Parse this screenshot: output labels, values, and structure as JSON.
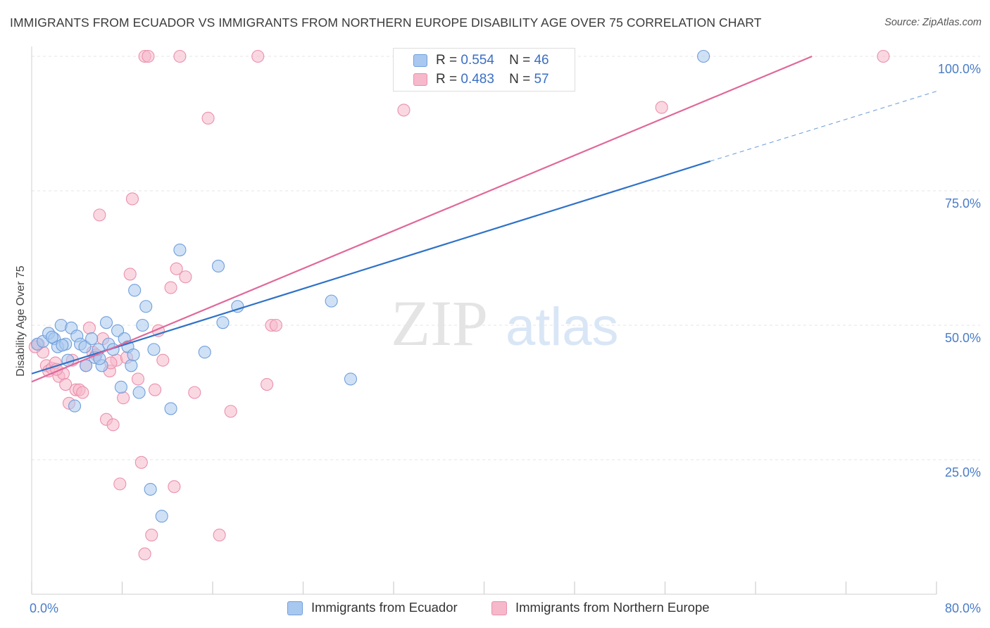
{
  "title": "IMMIGRANTS FROM ECUADOR VS IMMIGRANTS FROM NORTHERN EUROPE DISABILITY AGE OVER 75 CORRELATION CHART",
  "source": "Source: ZipAtlas.com",
  "watermark": {
    "zip": "ZIP",
    "atlas": "atlas"
  },
  "legend": {
    "r_label": "R =",
    "n_label": "N =",
    "series": [
      {
        "r": "0.554",
        "n": "46"
      },
      {
        "r": "0.483",
        "n": "57"
      }
    ]
  },
  "colors": {
    "ecuador_fill": "#a9c8ef",
    "ecuador_stroke": "#6f9fdc",
    "ecuador_line": "#2f72c8",
    "northern_fill": "#f6b8cb",
    "northern_stroke": "#eb90ad",
    "northern_line": "#e0689a",
    "tick_label": "#4a7cc7",
    "grid": "#e6e6e6"
  },
  "chart_data": {
    "type": "scatter",
    "title": "IMMIGRANTS FROM ECUADOR VS IMMIGRANTS FROM NORTHERN EUROPE DISABILITY AGE OVER 75 CORRELATION CHART",
    "xlabel": "",
    "ylabel": "Disability Age Over 75",
    "xlim": [
      0,
      80
    ],
    "ylim": [
      0,
      100
    ],
    "x_tick_labels": [
      "0.0%",
      "80.0%"
    ],
    "y_ticks": [
      25,
      50,
      75,
      100
    ],
    "y_tick_labels": [
      "25.0%",
      "50.0%",
      "75.0%",
      "100.0%"
    ],
    "grid": true,
    "legend_position": "top-center",
    "series": [
      {
        "name": "Immigrants from Ecuador",
        "points": [
          [
            0.5,
            46.5
          ],
          [
            1.0,
            47.0
          ],
          [
            1.5,
            48.5
          ],
          [
            2.0,
            47.5
          ],
          [
            2.3,
            46.0
          ],
          [
            2.6,
            50.0
          ],
          [
            3.0,
            46.5
          ],
          [
            3.2,
            43.5
          ],
          [
            3.5,
            49.5
          ],
          [
            3.8,
            35.0
          ],
          [
            4.0,
            48.0
          ],
          [
            4.3,
            46.5
          ],
          [
            4.7,
            46.0
          ],
          [
            4.8,
            42.5
          ],
          [
            5.3,
            47.5
          ],
          [
            5.6,
            44.0
          ],
          [
            5.9,
            45.5
          ],
          [
            6.2,
            42.5
          ],
          [
            6.6,
            50.5
          ],
          [
            6.8,
            46.5
          ],
          [
            7.2,
            45.5
          ],
          [
            7.6,
            49.0
          ],
          [
            7.9,
            38.5
          ],
          [
            8.2,
            47.5
          ],
          [
            8.5,
            46.0
          ],
          [
            8.8,
            42.5
          ],
          [
            9.1,
            56.5
          ],
          [
            9.5,
            37.5
          ],
          [
            9.8,
            50.0
          ],
          [
            10.1,
            53.5
          ],
          [
            10.5,
            19.5
          ],
          [
            10.8,
            45.5
          ],
          [
            11.5,
            14.5
          ],
          [
            12.3,
            34.5
          ],
          [
            13.1,
            64.0
          ],
          [
            15.3,
            45.0
          ],
          [
            16.5,
            61.0
          ],
          [
            16.9,
            50.5
          ],
          [
            18.2,
            53.5
          ],
          [
            26.5,
            54.5
          ],
          [
            28.2,
            40.0
          ],
          [
            59.4,
            100.0
          ],
          [
            2.7,
            46.3
          ],
          [
            6.0,
            43.8
          ],
          [
            9.0,
            44.5
          ],
          [
            1.8,
            47.8
          ]
        ],
        "trend": {
          "x": [
            0,
            60
          ],
          "y": [
            41.0,
            80.5
          ],
          "dashed_extension": {
            "x": [
              60,
              80
            ],
            "y": [
              80.5,
              93.5
            ]
          }
        }
      },
      {
        "name": "Immigrants from Northern Europe",
        "points": [
          [
            0.6,
            46.5
          ],
          [
            1.0,
            45.0
          ],
          [
            1.3,
            42.5
          ],
          [
            1.5,
            41.5
          ],
          [
            1.8,
            42.0
          ],
          [
            2.1,
            43.0
          ],
          [
            2.4,
            40.5
          ],
          [
            2.8,
            41.0
          ],
          [
            3.0,
            39.0
          ],
          [
            3.3,
            35.5
          ],
          [
            3.6,
            43.5
          ],
          [
            3.9,
            38.0
          ],
          [
            4.2,
            38.0
          ],
          [
            4.5,
            37.5
          ],
          [
            4.8,
            42.5
          ],
          [
            5.1,
            49.5
          ],
          [
            5.4,
            45.0
          ],
          [
            5.7,
            44.5
          ],
          [
            6.0,
            70.5
          ],
          [
            6.3,
            47.5
          ],
          [
            6.6,
            32.5
          ],
          [
            6.9,
            41.5
          ],
          [
            7.2,
            31.5
          ],
          [
            7.5,
            43.5
          ],
          [
            7.8,
            20.5
          ],
          [
            8.1,
            36.5
          ],
          [
            8.4,
            44.0
          ],
          [
            8.7,
            59.5
          ],
          [
            8.9,
            73.5
          ],
          [
            9.4,
            40.0
          ],
          [
            9.7,
            24.5
          ],
          [
            10.0,
            7.5
          ],
          [
            10.0,
            100.0
          ],
          [
            10.3,
            100.0
          ],
          [
            10.6,
            11.0
          ],
          [
            10.9,
            38.0
          ],
          [
            11.2,
            49.0
          ],
          [
            11.6,
            43.5
          ],
          [
            12.3,
            57.0
          ],
          [
            12.6,
            20.0
          ],
          [
            12.8,
            60.5
          ],
          [
            13.1,
            100.0
          ],
          [
            13.6,
            59.0
          ],
          [
            14.4,
            37.5
          ],
          [
            15.6,
            88.5
          ],
          [
            16.6,
            11.0
          ],
          [
            17.6,
            34.0
          ],
          [
            20.0,
            100.0
          ],
          [
            20.8,
            39.0
          ],
          [
            21.2,
            50.0
          ],
          [
            21.6,
            50.0
          ],
          [
            32.9,
            90.0
          ],
          [
            55.7,
            90.5
          ],
          [
            75.3,
            100.0
          ],
          [
            0.3,
            46.0
          ],
          [
            2.2,
            41.8
          ],
          [
            7.0,
            43.0
          ]
        ],
        "trend": {
          "x": [
            0,
            69
          ],
          "y": [
            39.5,
            100.0
          ]
        }
      }
    ],
    "bottom_legend": [
      "Immigrants from Ecuador",
      "Immigrants from Northern Europe"
    ]
  }
}
